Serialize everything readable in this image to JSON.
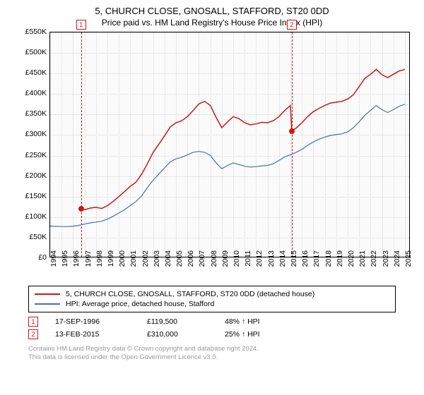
{
  "title": "5, CHURCH CLOSE, GNOSALL, STAFFORD, ST20 0DD",
  "subtitle": "Price paid vs. HM Land Registry's House Price Index (HPI)",
  "chart": {
    "background_color": "#fbfbfb",
    "grid_color": "#d6d6d6",
    "border_color": "#000000",
    "yaxis": {
      "min": 0,
      "max": 550000,
      "ticks": [
        0,
        50000,
        100000,
        150000,
        200000,
        250000,
        300000,
        350000,
        400000,
        450000,
        500000,
        550000
      ],
      "labels": [
        "£0",
        "£50K",
        "£100K",
        "£150K",
        "£200K",
        "£250K",
        "£300K",
        "£350K",
        "£400K",
        "£450K",
        "£500K",
        "£550K"
      ]
    },
    "xaxis": {
      "min": 1994,
      "max": 2025.5,
      "ticks": [
        1994,
        1995,
        1996,
        1997,
        1998,
        1999,
        2000,
        2001,
        2002,
        2003,
        2004,
        2005,
        2006,
        2007,
        2008,
        2009,
        2010,
        2011,
        2012,
        2013,
        2014,
        2015,
        2016,
        2017,
        2018,
        2019,
        2020,
        2021,
        2022,
        2023,
        2024,
        2025
      ],
      "labels": [
        "1994",
        "1995",
        "1996",
        "1997",
        "1998",
        "1999",
        "2000",
        "2001",
        "2002",
        "2003",
        "2004",
        "2005",
        "2006",
        "2007",
        "2008",
        "2009",
        "2010",
        "2011",
        "2012",
        "2013",
        "2014",
        "2015",
        "2016",
        "2017",
        "2018",
        "2019",
        "2020",
        "2021",
        "2022",
        "2023",
        "2024",
        "2025"
      ]
    },
    "series": [
      {
        "name": "price_paid",
        "color": "#d01414",
        "line_width": 1.5,
        "points": [
          [
            1996.7,
            119500
          ],
          [
            1997.0,
            118000
          ],
          [
            1997.5,
            122000
          ],
          [
            1998.0,
            124000
          ],
          [
            1998.5,
            121000
          ],
          [
            1999.0,
            128000
          ],
          [
            1999.5,
            138000
          ],
          [
            2000.0,
            150000
          ],
          [
            2000.5,
            162000
          ],
          [
            2001.0,
            175000
          ],
          [
            2001.5,
            185000
          ],
          [
            2002.0,
            205000
          ],
          [
            2002.5,
            230000
          ],
          [
            2003.0,
            258000
          ],
          [
            2003.5,
            278000
          ],
          [
            2004.0,
            298000
          ],
          [
            2004.5,
            320000
          ],
          [
            2005.0,
            330000
          ],
          [
            2005.5,
            335000
          ],
          [
            2006.0,
            345000
          ],
          [
            2006.5,
            360000
          ],
          [
            2007.0,
            376000
          ],
          [
            2007.5,
            382000
          ],
          [
            2008.0,
            372000
          ],
          [
            2008.5,
            343000
          ],
          [
            2009.0,
            318000
          ],
          [
            2009.5,
            332000
          ],
          [
            2010.0,
            345000
          ],
          [
            2010.5,
            340000
          ],
          [
            2011.0,
            330000
          ],
          [
            2011.5,
            325000
          ],
          [
            2012.0,
            327000
          ],
          [
            2012.5,
            331000
          ],
          [
            2013.0,
            330000
          ],
          [
            2013.5,
            335000
          ],
          [
            2014.0,
            345000
          ],
          [
            2014.5,
            360000
          ],
          [
            2015.0,
            372000
          ],
          [
            2015.12,
            310000
          ],
          [
            2015.5,
            317000
          ],
          [
            2016.0,
            330000
          ],
          [
            2016.5,
            345000
          ],
          [
            2017.0,
            357000
          ],
          [
            2017.5,
            365000
          ],
          [
            2018.0,
            372000
          ],
          [
            2018.5,
            378000
          ],
          [
            2019.0,
            380000
          ],
          [
            2019.5,
            382000
          ],
          [
            2020.0,
            388000
          ],
          [
            2020.5,
            398000
          ],
          [
            2021.0,
            418000
          ],
          [
            2021.5,
            438000
          ],
          [
            2022.0,
            448000
          ],
          [
            2022.5,
            460000
          ],
          [
            2023.0,
            447000
          ],
          [
            2023.5,
            440000
          ],
          [
            2024.0,
            448000
          ],
          [
            2024.5,
            456000
          ],
          [
            2025.0,
            460000
          ]
        ]
      },
      {
        "name": "hpi",
        "color": "#4a6fb0",
        "line_width": 1.2,
        "points": [
          [
            1994.0,
            78000
          ],
          [
            1994.5,
            77500
          ],
          [
            1995.0,
            77000
          ],
          [
            1995.5,
            76800
          ],
          [
            1996.0,
            78000
          ],
          [
            1996.5,
            80000
          ],
          [
            1997.0,
            83000
          ],
          [
            1997.5,
            86000
          ],
          [
            1998.0,
            88000
          ],
          [
            1998.5,
            90000
          ],
          [
            1999.0,
            95000
          ],
          [
            1999.5,
            102000
          ],
          [
            2000.0,
            110000
          ],
          [
            2000.5,
            118000
          ],
          [
            2001.0,
            128000
          ],
          [
            2001.5,
            138000
          ],
          [
            2002.0,
            152000
          ],
          [
            2002.5,
            172000
          ],
          [
            2003.0,
            190000
          ],
          [
            2003.5,
            205000
          ],
          [
            2004.0,
            220000
          ],
          [
            2004.5,
            235000
          ],
          [
            2005.0,
            242000
          ],
          [
            2005.5,
            246000
          ],
          [
            2006.0,
            252000
          ],
          [
            2006.5,
            258000
          ],
          [
            2007.0,
            260000
          ],
          [
            2007.5,
            258000
          ],
          [
            2008.0,
            250000
          ],
          [
            2008.5,
            232000
          ],
          [
            2009.0,
            218000
          ],
          [
            2009.5,
            226000
          ],
          [
            2010.0,
            232000
          ],
          [
            2010.5,
            228000
          ],
          [
            2011.0,
            224000
          ],
          [
            2011.5,
            222000
          ],
          [
            2012.0,
            223000
          ],
          [
            2012.5,
            225000
          ],
          [
            2013.0,
            226000
          ],
          [
            2013.5,
            230000
          ],
          [
            2014.0,
            238000
          ],
          [
            2014.5,
            247000
          ],
          [
            2015.0,
            252000
          ],
          [
            2015.5,
            258000
          ],
          [
            2016.0,
            265000
          ],
          [
            2016.5,
            275000
          ],
          [
            2017.0,
            283000
          ],
          [
            2017.5,
            290000
          ],
          [
            2018.0,
            295000
          ],
          [
            2018.5,
            299000
          ],
          [
            2019.0,
            301000
          ],
          [
            2019.5,
            303000
          ],
          [
            2020.0,
            308000
          ],
          [
            2020.5,
            318000
          ],
          [
            2021.0,
            332000
          ],
          [
            2021.5,
            348000
          ],
          [
            2022.0,
            360000
          ],
          [
            2022.5,
            372000
          ],
          [
            2023.0,
            362000
          ],
          [
            2023.5,
            355000
          ],
          [
            2024.0,
            362000
          ],
          [
            2024.5,
            370000
          ],
          [
            2025.0,
            375000
          ]
        ]
      }
    ],
    "sale_markers": [
      {
        "x": 1996.7,
        "y": 119500,
        "color": "#d01414"
      },
      {
        "x": 2015.12,
        "y": 310000,
        "color": "#d01414"
      }
    ],
    "events": [
      {
        "num": "1",
        "x": 1996.7,
        "color": "#d01414"
      },
      {
        "num": "2",
        "x": 2015.12,
        "color": "#d01414"
      }
    ]
  },
  "legend": {
    "items": [
      {
        "color": "#d01414",
        "label": "5, CHURCH CLOSE, GNOSALL, STAFFORD, ST20 0DD (detached house)"
      },
      {
        "color": "#4a6fb0",
        "label": "HPI: Average price, detached house, Stafford"
      }
    ]
  },
  "sales": [
    {
      "num": "1",
      "date": "17-SEP-1996",
      "price": "£119,500",
      "pct": "48% ↑ HPI",
      "color": "#d01414"
    },
    {
      "num": "2",
      "date": "13-FEB-2015",
      "price": "£310,000",
      "pct": "25% ↑ HPI",
      "color": "#d01414"
    }
  ],
  "footnote_line1": "Contains HM Land Registry data © Crown copyright and database right 2024.",
  "footnote_line2": "This data is licensed under the Open Government Licence v3.0."
}
